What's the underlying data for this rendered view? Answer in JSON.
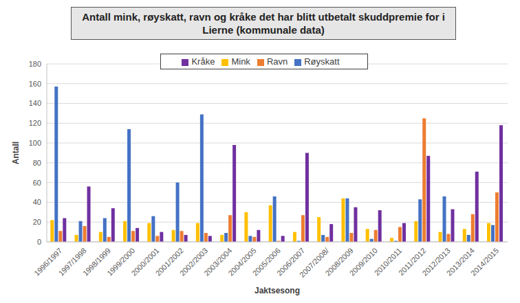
{
  "chart_data": {
    "type": "bar",
    "title": "Antall mink, røyskatt, ravn og kråke det har blitt utbetalt skuddpremie for i Lierne (kommunale data)",
    "x_label": "Jaktsesong",
    "y_label": "Antall",
    "categories": [
      "1996/1997",
      "1997/1998",
      "1998/1999",
      "1999/2000",
      "2000/2001",
      "2001/2002",
      "2002/2003",
      "2003/2004",
      "2004/2005",
      "2005/2006",
      "2006/2007",
      "2007/2008/",
      "2008/2009",
      "2009/2010",
      "2010/2011",
      "2011/2012",
      "2012/2013",
      "2013/2014",
      "2014/2015"
    ],
    "series": [
      {
        "name": "Mink",
        "color": "#FFC000",
        "values": [
          22,
          7,
          10,
          21,
          19,
          12,
          19,
          7,
          30,
          37,
          10,
          25,
          44,
          13,
          4,
          21,
          10,
          13,
          19
        ]
      },
      {
        "name": "Røyskatt",
        "color": "#4472C4",
        "values": [
          157,
          21,
          24,
          114,
          26,
          60,
          129,
          9,
          6,
          46,
          1,
          7,
          44,
          3,
          1,
          43,
          46,
          7,
          17
        ]
      },
      {
        "name": "Ravn",
        "color": "#ED7D31",
        "values": [
          11,
          16,
          5,
          11,
          6,
          11,
          9,
          27,
          5,
          1,
          27,
          5,
          9,
          12,
          15,
          125,
          8,
          28,
          50
        ]
      },
      {
        "name": "Kråke",
        "color": "#7030A0",
        "values": [
          24,
          56,
          34,
          14,
          10,
          7,
          6,
          98,
          12,
          6,
          90,
          18,
          35,
          32,
          19,
          87,
          33,
          71,
          118
        ]
      }
    ],
    "ylim": [
      0,
      180
    ],
    "yticks": [
      0,
      20,
      40,
      60,
      80,
      100,
      120,
      140,
      160,
      180
    ],
    "grid": true,
    "legend": "top"
  }
}
